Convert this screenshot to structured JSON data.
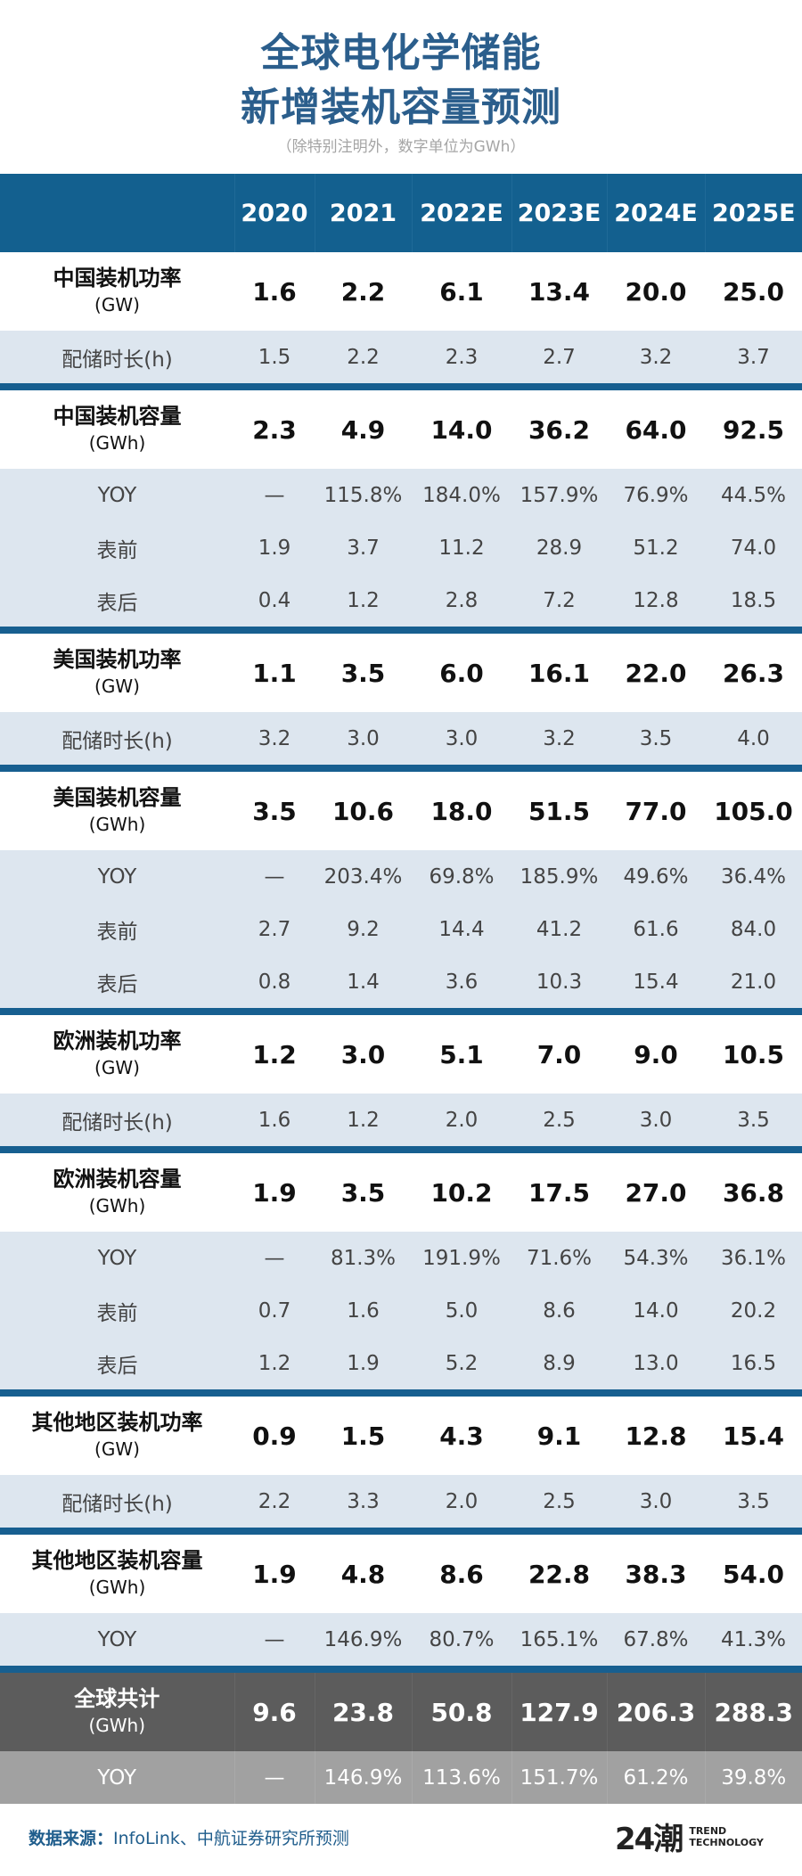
{
  "title_line1": "全球电化学储能",
  "title_line2": "新增装机容量预测",
  "subtitle": "（除特别注明外，数字单位为GWh）",
  "columns": [
    "2020",
    "2021",
    "2022E",
    "2023E",
    "2024E",
    "2025E"
  ],
  "rows": [
    {
      "type": "main",
      "label": "中国装机功率",
      "unit": "(GW)",
      "values": [
        "1.6",
        "2.2",
        "6.1",
        "13.4",
        "20.0",
        "25.0"
      ]
    },
    {
      "type": "sub",
      "label": "配储时长(h)",
      "values": [
        "1.5",
        "2.2",
        "2.3",
        "2.7",
        "3.2",
        "3.7"
      ]
    },
    {
      "type": "sep"
    },
    {
      "type": "main",
      "label": "中国装机容量",
      "unit": "(GWh)",
      "values": [
        "2.3",
        "4.9",
        "14.0",
        "36.2",
        "64.0",
        "92.5"
      ]
    },
    {
      "type": "sub",
      "label": "YOY",
      "values": [
        "—",
        "115.8%",
        "184.0%",
        "157.9%",
        "76.9%",
        "44.5%"
      ]
    },
    {
      "type": "sub",
      "label": "表前",
      "values": [
        "1.9",
        "3.7",
        "11.2",
        "28.9",
        "51.2",
        "74.0"
      ]
    },
    {
      "type": "sub",
      "label": "表后",
      "values": [
        "0.4",
        "1.2",
        "2.8",
        "7.2",
        "12.8",
        "18.5"
      ]
    },
    {
      "type": "sep"
    },
    {
      "type": "main",
      "label": "美国装机功率",
      "unit": "(GW)",
      "values": [
        "1.1",
        "3.5",
        "6.0",
        "16.1",
        "22.0",
        "26.3"
      ]
    },
    {
      "type": "sub",
      "label": "配储时长(h)",
      "values": [
        "3.2",
        "3.0",
        "3.0",
        "3.2",
        "3.5",
        "4.0"
      ]
    },
    {
      "type": "sep"
    },
    {
      "type": "main",
      "label": "美国装机容量",
      "unit": "(GWh)",
      "values": [
        "3.5",
        "10.6",
        "18.0",
        "51.5",
        "77.0",
        "105.0"
      ]
    },
    {
      "type": "sub",
      "label": "YOY",
      "values": [
        "—",
        "203.4%",
        "69.8%",
        "185.9%",
        "49.6%",
        "36.4%"
      ]
    },
    {
      "type": "sub",
      "label": "表前",
      "values": [
        "2.7",
        "9.2",
        "14.4",
        "41.2",
        "61.6",
        "84.0"
      ]
    },
    {
      "type": "sub",
      "label": "表后",
      "values": [
        "0.8",
        "1.4",
        "3.6",
        "10.3",
        "15.4",
        "21.0"
      ]
    },
    {
      "type": "sep"
    },
    {
      "type": "main",
      "label": "欧洲装机功率",
      "unit": "(GW)",
      "values": [
        "1.2",
        "3.0",
        "5.1",
        "7.0",
        "9.0",
        "10.5"
      ]
    },
    {
      "type": "sub",
      "label": "配储时长(h)",
      "values": [
        "1.6",
        "1.2",
        "2.0",
        "2.5",
        "3.0",
        "3.5"
      ]
    },
    {
      "type": "sep"
    },
    {
      "type": "main",
      "label": "欧洲装机容量",
      "unit": "(GWh)",
      "values": [
        "1.9",
        "3.5",
        "10.2",
        "17.5",
        "27.0",
        "36.8"
      ]
    },
    {
      "type": "sub",
      "label": "YOY",
      "values": [
        "—",
        "81.3%",
        "191.9%",
        "71.6%",
        "54.3%",
        "36.1%"
      ]
    },
    {
      "type": "sub",
      "label": "表前",
      "values": [
        "0.7",
        "1.6",
        "5.0",
        "8.6",
        "14.0",
        "20.2"
      ]
    },
    {
      "type": "sub",
      "label": "表后",
      "values": [
        "1.2",
        "1.9",
        "5.2",
        "8.9",
        "13.0",
        "16.5"
      ]
    },
    {
      "type": "sep"
    },
    {
      "type": "main",
      "label": "其他地区装机功率",
      "unit": "(GW)",
      "values": [
        "0.9",
        "1.5",
        "4.3",
        "9.1",
        "12.8",
        "15.4"
      ]
    },
    {
      "type": "sub",
      "label": "配储时长(h)",
      "values": [
        "2.2",
        "3.3",
        "2.0",
        "2.5",
        "3.0",
        "3.5"
      ]
    },
    {
      "type": "sep"
    },
    {
      "type": "main",
      "label": "其他地区装机容量",
      "unit": "(GWh)",
      "values": [
        "1.9",
        "4.8",
        "8.6",
        "22.8",
        "38.3",
        "54.0"
      ]
    },
    {
      "type": "sub",
      "label": "YOY",
      "values": [
        "—",
        "146.9%",
        "80.7%",
        "165.1%",
        "67.8%",
        "41.3%"
      ]
    },
    {
      "type": "sep"
    },
    {
      "type": "total",
      "label": "全球共计",
      "unit": "(GWh)",
      "values": [
        "9.6",
        "23.8",
        "50.8",
        "127.9",
        "206.3",
        "288.3"
      ]
    },
    {
      "type": "totalyoy",
      "label": "YOY",
      "values": [
        "—",
        "146.9%",
        "113.6%",
        "151.7%",
        "61.2%",
        "39.8%"
      ]
    }
  ],
  "footer": {
    "source_label": "数据来源：",
    "source_text": "InfoLink、中航证券研究所预测"
  },
  "logo": {
    "mark": "24潮",
    "line1": "TREND",
    "line2": "TECHNOLOGY"
  },
  "colors": {
    "title": "#2b5e8c",
    "header": "#13608f",
    "sub_row": "#dde6ef",
    "separator": "#175f90",
    "total": "#5c5c5c",
    "total_yoy": "#a1a1a1"
  }
}
